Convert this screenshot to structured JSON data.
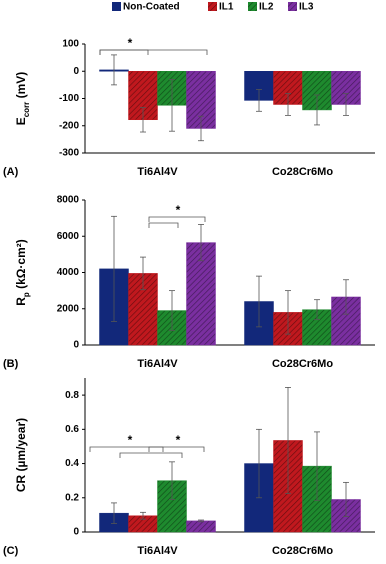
{
  "chart_data": [
    {
      "type": "bar",
      "panel_label": "(A)",
      "y_label": [
        "E",
        "corr",
        " (mV)"
      ],
      "categories": [
        "Ti6Al4V",
        "Co28Cr6Mo"
      ],
      "series": [
        {
          "name": "Non-Coated",
          "color": "#12287a",
          "hatch": false,
          "values": [
            5,
            -107
          ],
          "errors": [
            55,
            40
          ]
        },
        {
          "name": "IL1",
          "color": "#c0181e",
          "hatch": true,
          "values": [
            -178,
            -122
          ],
          "errors": [
            45,
            40
          ]
        },
        {
          "name": "IL2",
          "color": "#1e8a2e",
          "hatch": true,
          "values": [
            -125,
            -142
          ],
          "errors": [
            95,
            55
          ]
        },
        {
          "name": "IL3",
          "color": "#7a2fa0",
          "hatch": true,
          "values": [
            -210,
            -122
          ],
          "errors": [
            45,
            40
          ]
        }
      ],
      "ylim": [
        -300,
        100
      ],
      "yticks": [
        -300,
        -200,
        -100,
        0,
        100
      ],
      "annotations": [
        "*"
      ]
    },
    {
      "type": "bar",
      "panel_label": "(B)",
      "y_label": [
        "R",
        "p",
        " (kΩ·cm²)"
      ],
      "categories": [
        "Ti6Al4V",
        "Co28Cr6Mo"
      ],
      "series": [
        {
          "color": "#12287a",
          "hatch": false,
          "values": [
            4200,
            2400
          ],
          "errors": [
            2900,
            1400
          ]
        },
        {
          "color": "#c0181e",
          "hatch": true,
          "values": [
            3950,
            1800
          ],
          "errors": [
            900,
            1200
          ]
        },
        {
          "color": "#1e8a2e",
          "hatch": true,
          "values": [
            1900,
            1950
          ],
          "errors": [
            1100,
            550
          ]
        },
        {
          "color": "#7a2fa0",
          "hatch": true,
          "values": [
            5650,
            2650
          ],
          "errors": [
            1000,
            950
          ]
        }
      ],
      "ylim": [
        0,
        8000
      ],
      "yticks": [
        0,
        2000,
        4000,
        6000,
        8000
      ],
      "annotations": [
        "*"
      ]
    },
    {
      "type": "bar",
      "panel_label": "(C)",
      "y_label": "CR (µm/year)",
      "categories": [
        "Ti6Al4V",
        "Co28Cr6Mo"
      ],
      "series": [
        {
          "color": "#12287a",
          "hatch": false,
          "values": [
            0.11,
            0.4
          ],
          "errors": [
            0.06,
            0.2
          ]
        },
        {
          "color": "#c0181e",
          "hatch": true,
          "values": [
            0.095,
            0.535
          ],
          "errors": [
            0.02,
            0.31
          ]
        },
        {
          "color": "#1e8a2e",
          "hatch": true,
          "values": [
            0.3,
            0.385
          ],
          "errors": [
            0.11,
            0.2
          ]
        },
        {
          "color": "#7a2fa0",
          "hatch": true,
          "values": [
            0.065,
            0.19
          ],
          "errors": [
            0.005,
            0.1
          ]
        }
      ],
      "ylim": [
        0,
        0.9
      ],
      "yticks": [
        0,
        0.2,
        0.4,
        0.6,
        0.8
      ],
      "annotations": [
        "*",
        "*"
      ]
    }
  ]
}
